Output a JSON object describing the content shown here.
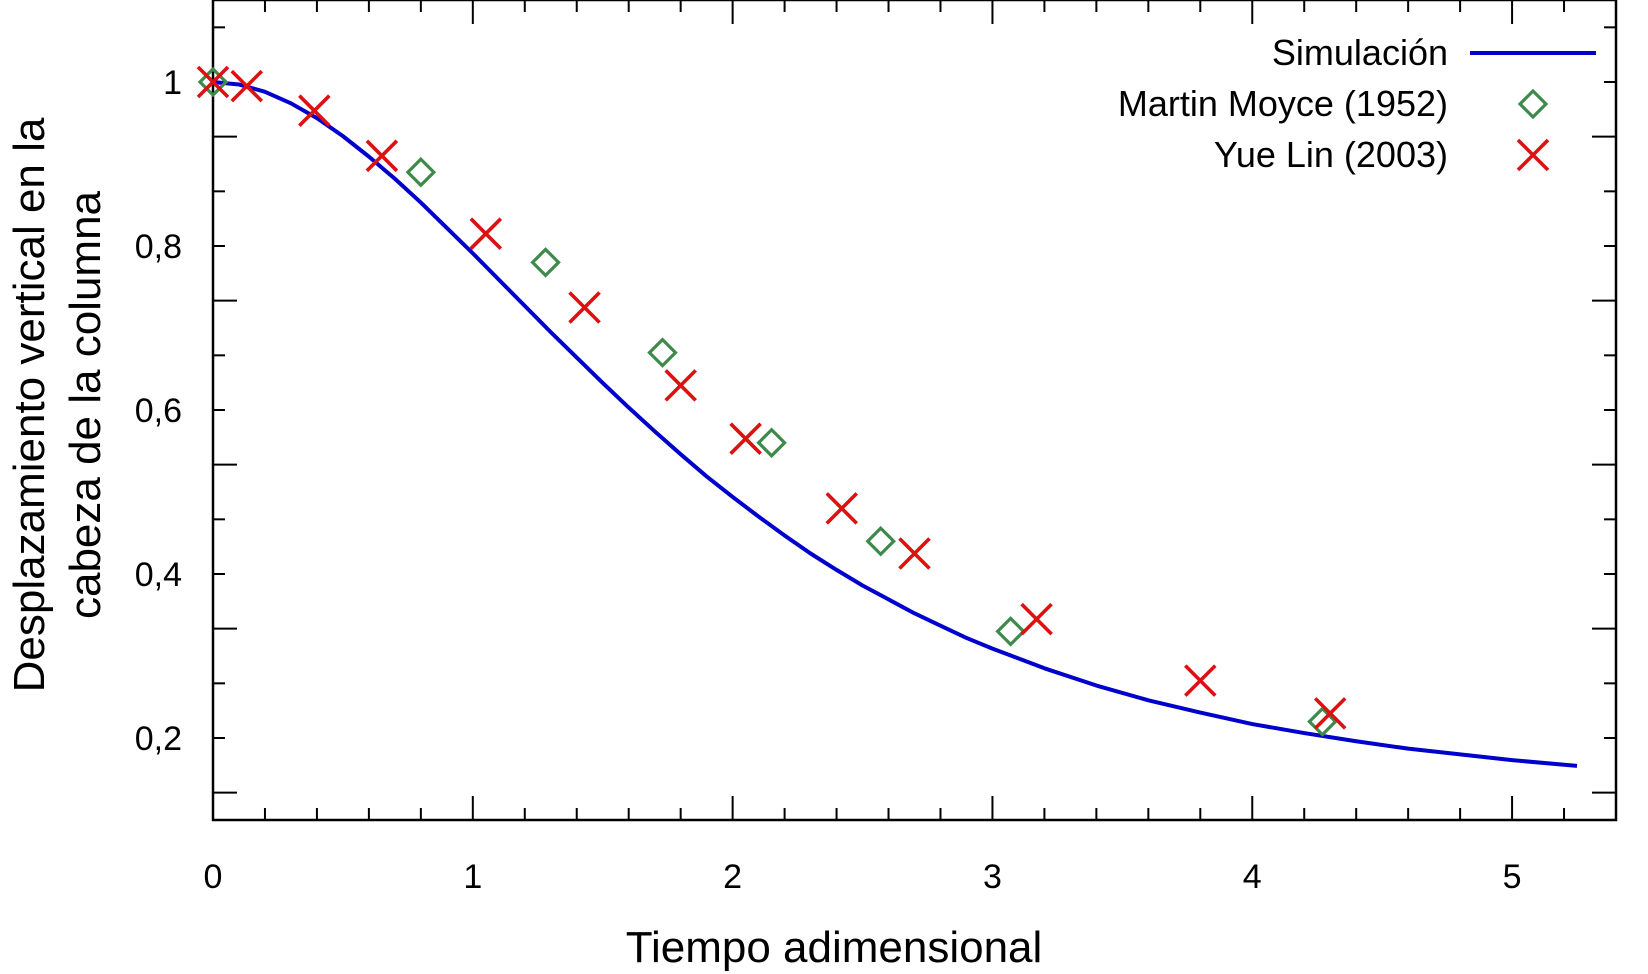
{
  "chart_data": {
    "type": "line",
    "title": "",
    "xlabel": "Tiempo adimensional",
    "ylabel_lines": [
      "Desplazamiento vertical en la",
      "cabeza de la columna"
    ],
    "xlim": [
      0,
      5.4
    ],
    "ylim": [
      0.1,
      1.1
    ],
    "x_ticks": [
      0,
      1,
      2,
      3,
      4,
      5
    ],
    "x_tick_labels": [
      "0",
      "1",
      "2",
      "3",
      "4",
      "5"
    ],
    "x_minor_step": 0.2,
    "y_ticks": [
      0.2,
      0.4,
      0.6,
      0.8,
      1.0
    ],
    "y_tick_labels": [
      "0,2",
      "0,4",
      "0,6",
      "0,8",
      "1"
    ],
    "y_minor_step": 0.0667,
    "grid": false,
    "legend_position": "top-right",
    "series": [
      {
        "name": "Simulación",
        "style": "line",
        "color": "#0000cc",
        "x": [
          0,
          0.1,
          0.2,
          0.3,
          0.4,
          0.5,
          0.6,
          0.7,
          0.8,
          0.9,
          1.0,
          1.1,
          1.2,
          1.3,
          1.4,
          1.5,
          1.6,
          1.7,
          1.8,
          1.9,
          2.0,
          2.1,
          2.2,
          2.3,
          2.4,
          2.5,
          2.6,
          2.7,
          2.8,
          2.9,
          3.0,
          3.2,
          3.4,
          3.6,
          3.8,
          4.0,
          4.2,
          4.4,
          4.6,
          4.8,
          5.0,
          5.25
        ],
        "y": [
          1.0,
          0.997,
          0.988,
          0.974,
          0.956,
          0.934,
          0.909,
          0.882,
          0.853,
          0.822,
          0.791,
          0.759,
          0.727,
          0.695,
          0.664,
          0.633,
          0.603,
          0.574,
          0.546,
          0.519,
          0.494,
          0.47,
          0.447,
          0.425,
          0.405,
          0.386,
          0.369,
          0.352,
          0.337,
          0.322,
          0.309,
          0.285,
          0.264,
          0.246,
          0.231,
          0.217,
          0.206,
          0.196,
          0.187,
          0.18,
          0.173,
          0.166
        ]
      },
      {
        "name": "Martin Moyce (1952)",
        "style": "diamond",
        "color": "#3d8a4a",
        "x": [
          0.0,
          0.8,
          1.28,
          1.73,
          2.15,
          2.57,
          3.07,
          4.27
        ],
        "y": [
          1.0,
          0.89,
          0.78,
          0.67,
          0.56,
          0.44,
          0.33,
          0.22
        ]
      },
      {
        "name": "Yue Lin (2003)",
        "style": "cross",
        "color": "#dd1111",
        "x": [
          0.0,
          0.13,
          0.39,
          0.65,
          1.05,
          1.43,
          1.8,
          2.05,
          2.42,
          2.7,
          3.17,
          3.8,
          4.3
        ],
        "y": [
          1.0,
          0.995,
          0.965,
          0.91,
          0.815,
          0.725,
          0.63,
          0.565,
          0.48,
          0.425,
          0.345,
          0.27,
          0.23
        ]
      }
    ]
  }
}
